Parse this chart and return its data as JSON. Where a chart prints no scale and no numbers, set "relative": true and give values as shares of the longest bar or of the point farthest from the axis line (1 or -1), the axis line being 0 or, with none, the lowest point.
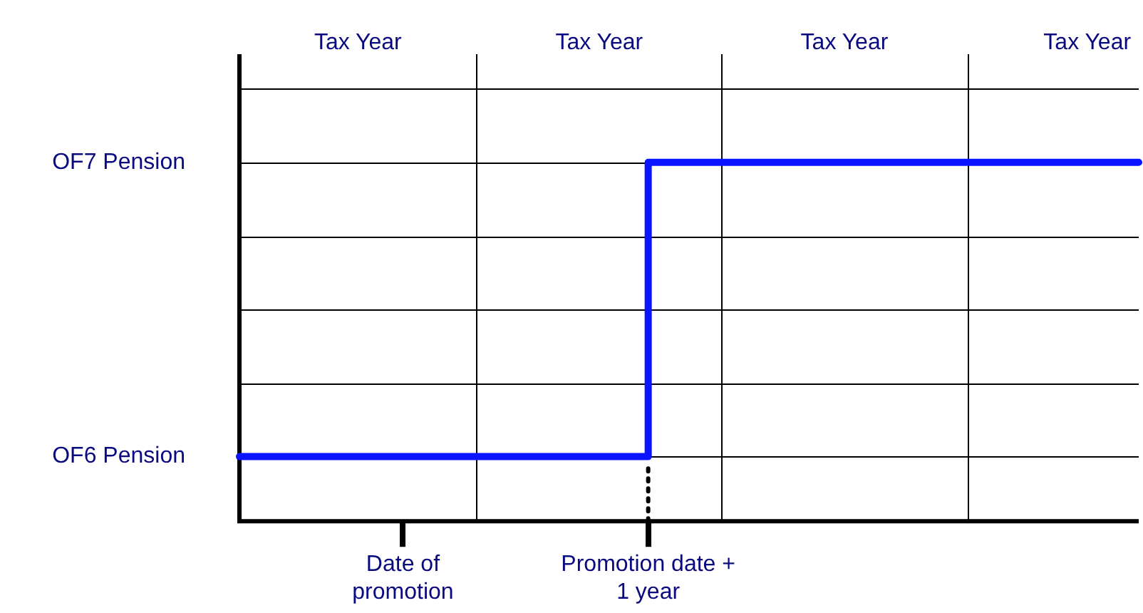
{
  "chart_data": {
    "type": "step",
    "legend": false,
    "grid": true,
    "marker": "none",
    "relative": true,
    "categories": [
      null,
      null,
      "Date of promotion",
      null,
      null,
      "Promotion date + 1 year",
      null,
      null,
      null,
      null,
      null,
      null
    ],
    "series": [
      {
        "color": "#0a14ff",
        "values": [
          0.18,
          0.18,
          0.18,
          0.18,
          0.18,
          1,
          1,
          1,
          1,
          1,
          1,
          1
        ]
      }
    ],
    "annotations": [
      "OF6 Pension",
      "OF7 Pension",
      "Tax Year",
      "Tax Year",
      "Tax Year",
      "Tax Year"
    ],
    "ref_lines": [
      {
        "axis": "x",
        "value": "Promotion date + 1 year",
        "color": "#000000",
        "line_style": "dotted"
      }
    ]
  }
}
